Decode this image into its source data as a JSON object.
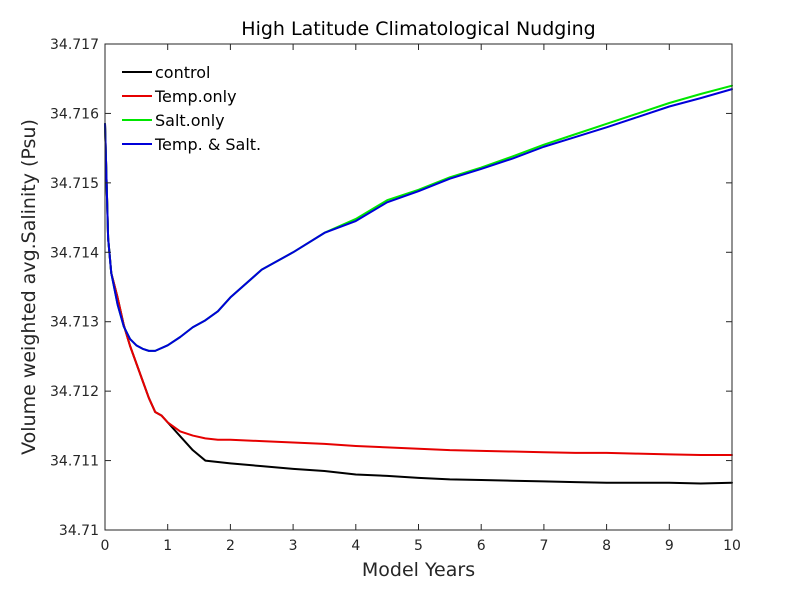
{
  "chart_data": {
    "type": "line",
    "title": "High Latitude Climatological Nudging",
    "xlabel": "Model Years",
    "ylabel": "Volume weighted avg.Salinity (Psu)",
    "xlim": [
      0,
      10
    ],
    "ylim": [
      34.71,
      34.717
    ],
    "xticks": [
      "0",
      "1",
      "2",
      "3",
      "4",
      "5",
      "6",
      "7",
      "8",
      "9",
      "10"
    ],
    "yticks": [
      "34.71",
      "34.711",
      "34.712",
      "34.713",
      "34.714",
      "34.715",
      "34.716",
      "34.717"
    ],
    "grid": false,
    "legend_position": "top-left",
    "series": [
      {
        "name": "control",
        "color": "#000000",
        "x": [
          0,
          0.05,
          0.1,
          0.2,
          0.3,
          0.4,
          0.5,
          0.6,
          0.7,
          0.8,
          0.9,
          1.0,
          1.2,
          1.4,
          1.6,
          1.8,
          2.0,
          2.5,
          3.0,
          3.5,
          4.0,
          4.5,
          5.0,
          5.5,
          6.0,
          6.5,
          7.0,
          7.5,
          8.0,
          8.5,
          9.0,
          9.5,
          10.0
        ],
        "y": [
          34.71585,
          34.7142,
          34.7137,
          34.71335,
          34.71295,
          34.71265,
          34.7124,
          34.71215,
          34.7119,
          34.7117,
          34.71165,
          34.71155,
          34.71135,
          34.71115,
          34.711,
          34.71098,
          34.71096,
          34.71092,
          34.71088,
          34.71085,
          34.7108,
          34.71078,
          34.71075,
          34.71073,
          34.71072,
          34.71071,
          34.7107,
          34.71069,
          34.71068,
          34.71068,
          34.71068,
          34.71067,
          34.71068
        ]
      },
      {
        "name": "Temp.only",
        "color": "#e60000",
        "x": [
          0,
          0.05,
          0.1,
          0.2,
          0.3,
          0.4,
          0.5,
          0.6,
          0.7,
          0.8,
          0.9,
          1.0,
          1.2,
          1.4,
          1.6,
          1.8,
          2.0,
          2.5,
          3.0,
          3.5,
          4.0,
          4.5,
          5.0,
          5.5,
          6.0,
          6.5,
          7.0,
          7.5,
          8.0,
          8.5,
          9.0,
          9.5,
          10.0
        ],
        "y": [
          34.71585,
          34.7142,
          34.7137,
          34.71335,
          34.71295,
          34.71265,
          34.7124,
          34.71215,
          34.7119,
          34.7117,
          34.71165,
          34.71155,
          34.71142,
          34.71136,
          34.71132,
          34.7113,
          34.7113,
          34.71128,
          34.71126,
          34.71124,
          34.71121,
          34.71119,
          34.71117,
          34.71115,
          34.71114,
          34.71113,
          34.71112,
          34.71111,
          34.71111,
          34.7111,
          34.71109,
          34.71108,
          34.71108
        ]
      },
      {
        "name": "Salt.only",
        "color": "#00e600",
        "x": [
          0,
          0.05,
          0.1,
          0.2,
          0.3,
          0.4,
          0.5,
          0.6,
          0.7,
          0.8,
          1.0,
          1.2,
          1.4,
          1.6,
          1.8,
          2.0,
          2.5,
          3.0,
          3.5,
          4.0,
          4.5,
          5.0,
          5.5,
          6.0,
          6.5,
          7.0,
          7.5,
          8.0,
          8.5,
          9.0,
          9.5,
          10.0
        ],
        "y": [
          34.71585,
          34.7142,
          34.7137,
          34.71325,
          34.71293,
          34.71275,
          34.71266,
          34.71261,
          34.71258,
          34.71258,
          34.71266,
          34.71278,
          34.71292,
          34.71302,
          34.71315,
          34.71335,
          34.71375,
          34.714,
          34.71428,
          34.71448,
          34.71475,
          34.7149,
          34.71508,
          34.71522,
          34.71538,
          34.71555,
          34.7157,
          34.71585,
          34.716,
          34.71615,
          34.71628,
          34.7164
        ]
      },
      {
        "name": "Temp. & Salt.",
        "color": "#0000d9",
        "x": [
          0,
          0.05,
          0.1,
          0.2,
          0.3,
          0.4,
          0.5,
          0.6,
          0.7,
          0.8,
          1.0,
          1.2,
          1.4,
          1.6,
          1.8,
          2.0,
          2.5,
          3.0,
          3.5,
          4.0,
          4.5,
          5.0,
          5.5,
          6.0,
          6.5,
          7.0,
          7.5,
          8.0,
          8.5,
          9.0,
          9.5,
          10.0
        ],
        "y": [
          34.71585,
          34.7142,
          34.7137,
          34.71325,
          34.71293,
          34.71275,
          34.71266,
          34.71261,
          34.71258,
          34.71258,
          34.71266,
          34.71278,
          34.71292,
          34.71302,
          34.71315,
          34.71335,
          34.71375,
          34.714,
          34.71428,
          34.71445,
          34.71472,
          34.71488,
          34.71506,
          34.7152,
          34.71535,
          34.71552,
          34.71566,
          34.7158,
          34.71595,
          34.7161,
          34.71622,
          34.71635
        ]
      }
    ]
  }
}
